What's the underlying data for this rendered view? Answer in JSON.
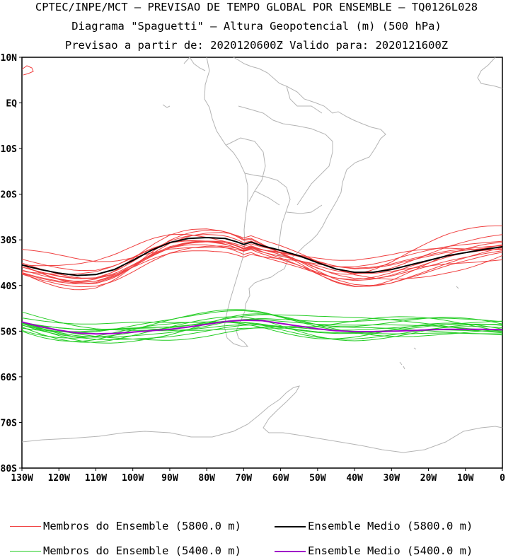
{
  "header": {
    "line1": "CPTEC/INPE/MCT — PREVISAO DE TEMPO GLOBAL POR ENSEMBLE — TQ0126L028",
    "line2": "Diagrama \"Spaguetti\" — Altura Geopotencial (m) (500 hPa)",
    "line3": "Previsao a partir de: 2020120600Z  Valido para: 2020121600Z"
  },
  "map": {
    "lat_labels": [
      "10N",
      "EQ",
      "10S",
      "20S",
      "30S",
      "40S",
      "50S",
      "60S",
      "70S",
      "80S"
    ],
    "lat_values": [
      10,
      0,
      -10,
      -20,
      -30,
      -40,
      -50,
      -60,
      -70,
      -80
    ],
    "lon_labels": [
      "130W",
      "120W",
      "110W",
      "100W",
      "90W",
      "80W",
      "70W",
      "60W",
      "50W",
      "40W",
      "30W",
      "20W",
      "10W",
      "0"
    ],
    "lon_values": [
      -130,
      -120,
      -110,
      -100,
      -90,
      -80,
      -70,
      -60,
      -50,
      -40,
      -30,
      -20,
      -10,
      0
    ],
    "lon_range": [
      -130,
      0
    ],
    "lat_range": [
      -80,
      10
    ],
    "colors": {
      "coast": "#b4b4b4",
      "members_5800": "#f04040",
      "mean_5800": "#000000",
      "members_5400": "#22cc22",
      "mean_5400": "#a000c8"
    }
  },
  "contours": {
    "mean_5800": {
      "lon": [
        -130,
        -125,
        -120,
        -115,
        -110,
        -105,
        -100,
        -95,
        -90,
        -85,
        -80,
        -75,
        -72,
        -70,
        -68,
        -65,
        -60,
        -55,
        -50,
        -45,
        -40,
        -35,
        -30,
        -25,
        -20,
        -15,
        -10,
        -5,
        0
      ],
      "lat": [
        -35.5,
        -36.5,
        -37.3,
        -37.8,
        -37.6,
        -36.5,
        -34.5,
        -32.3,
        -30.6,
        -29.7,
        -29.5,
        -29.7,
        -30.4,
        -31.0,
        -30.5,
        -31.3,
        -32.3,
        -33.5,
        -35.0,
        -36.4,
        -37.1,
        -37.1,
        -36.5,
        -35.5,
        -34.5,
        -33.5,
        -32.8,
        -32.1,
        -31.5
      ]
    },
    "mean_5400": {
      "lon": [
        -130,
        -125,
        -120,
        -115,
        -110,
        -105,
        -100,
        -95,
        -90,
        -85,
        -80,
        -75,
        -70,
        -65,
        -60,
        -55,
        -50,
        -45,
        -40,
        -35,
        -30,
        -25,
        -20,
        -15,
        -10,
        -5,
        0
      ],
      "lat": [
        -48.0,
        -49.0,
        -49.8,
        -50.4,
        -50.6,
        -50.5,
        -50.2,
        -49.9,
        -49.6,
        -49.1,
        -48.5,
        -47.9,
        -47.6,
        -47.7,
        -48.3,
        -48.9,
        -49.5,
        -49.9,
        -50.1,
        -50.1,
        -50.0,
        -49.9,
        -49.7,
        -49.6,
        -49.6,
        -49.6,
        -49.7
      ]
    },
    "members_5800_count": 14,
    "members_5400_count": 14
  },
  "legend": {
    "members_5800": "Membros do Ensemble (5800.0 m)",
    "mean_5800": "Ensemble Medio (5800.0 m)",
    "members_5400": "Membros do Ensemble (5400.0 m)",
    "mean_5400": "Ensemble Medio (5400.0 m)"
  }
}
